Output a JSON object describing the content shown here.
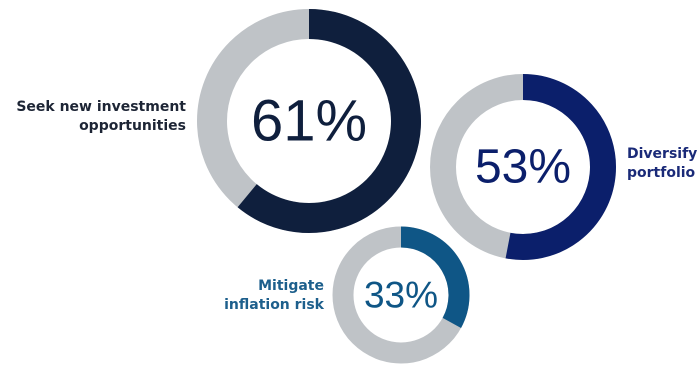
{
  "chart_data": {
    "type": "donut",
    "track_color": "#bfc3c7",
    "series": [
      {
        "label": "Seek new investment\nopportunities",
        "value": 61,
        "value_label": "61%",
        "color": "#0f1f3d",
        "label_color": "#1d2535"
      },
      {
        "label": "Diversify\nportfolio",
        "value": 53,
        "value_label": "53%",
        "color": "#0b1f6b",
        "label_color": "#1a2a78"
      },
      {
        "label": "Mitigate\ninflation risk",
        "value": 33,
        "value_label": "33%",
        "color": "#0f5686",
        "label_color": "#1d5f8c"
      }
    ]
  }
}
